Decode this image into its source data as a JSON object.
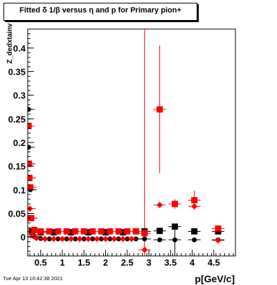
{
  "title": "Fitted δ 1/β versus η and p for Primary pion+",
  "footer": "Tue Apr 13 10:42:38 2021",
  "chart_data": {
    "type": "scatter",
    "title": "Fitted δ 1/β versus η and p for Primary pion+",
    "xlabel": "p[GeV/c]",
    "ylabel": "Z_dedxtainv",
    "xlim": [
      0.2,
      5.0
    ],
    "ylim": [
      -0.04,
      0.44
    ],
    "x_ticks": [
      0.5,
      1,
      1.5,
      2,
      2.5,
      3,
      3.5,
      4,
      4.5
    ],
    "x_tick_labels": [
      "0.5",
      "1",
      "1.5",
      "2",
      "2.5",
      "3",
      "3.5",
      "4",
      "4.5"
    ],
    "y_ticks": [
      0,
      0.05,
      0.1,
      0.15,
      0.2,
      0.25,
      0.3,
      0.35,
      0.4
    ],
    "y_tick_labels": [
      "0",
      "0.05",
      "0.1",
      "0.15",
      "0.2",
      "0.25",
      "0.3",
      "0.35",
      "0.4"
    ],
    "grid": false,
    "colors": {
      "black": "#000000",
      "red": "#ff0000"
    },
    "series": [
      {
        "color": "black",
        "marker": "circle",
        "points": [
          {
            "x": 0.22,
            "y": 0.27
          },
          {
            "x": 0.22,
            "y": 0.19
          },
          {
            "x": 0.23,
            "y": 0.155
          },
          {
            "x": 0.24,
            "y": 0.125
          },
          {
            "x": 0.26,
            "y": 0.1
          },
          {
            "x": 0.28,
            "y": 0.04
          },
          {
            "x": 0.3,
            "y": 0.01
          },
          {
            "x": 0.35,
            "y": 0.001
          },
          {
            "x": 0.4,
            "y": -0.002
          },
          {
            "x": 0.5,
            "y": -0.003
          },
          {
            "x": 0.7,
            "y": -0.004
          },
          {
            "x": 0.9,
            "y": -0.004
          },
          {
            "x": 1.1,
            "y": -0.004
          },
          {
            "x": 1.3,
            "y": -0.004
          },
          {
            "x": 1.5,
            "y": -0.004
          },
          {
            "x": 1.7,
            "y": -0.004
          },
          {
            "x": 1.9,
            "y": -0.004
          },
          {
            "x": 2.1,
            "y": -0.004
          },
          {
            "x": 2.3,
            "y": -0.004
          },
          {
            "x": 2.5,
            "y": -0.004
          },
          {
            "x": 2.7,
            "y": -0.004
          },
          {
            "x": 2.9,
            "y": -0.004
          },
          {
            "x": 3.25,
            "y": -0.006
          },
          {
            "x": 3.6,
            "y": -0.006
          },
          {
            "x": 4.05,
            "y": -0.006
          },
          {
            "x": 4.6,
            "y": -0.006
          }
        ]
      },
      {
        "color": "black",
        "marker": "square",
        "points": [
          {
            "x": 0.3,
            "y": 0.012
          },
          {
            "x": 0.5,
            "y": 0.01
          },
          {
            "x": 0.8,
            "y": 0.01
          },
          {
            "x": 1.2,
            "y": 0.01
          },
          {
            "x": 1.6,
            "y": 0.01
          },
          {
            "x": 2.0,
            "y": 0.01
          },
          {
            "x": 2.4,
            "y": 0.01
          },
          {
            "x": 2.7,
            "y": 0.012
          },
          {
            "x": 2.9,
            "y": 0.012
          },
          {
            "x": 3.25,
            "y": 0.013
          },
          {
            "x": 3.6,
            "y": 0.022
          },
          {
            "x": 4.05,
            "y": 0.012
          },
          {
            "x": 4.6,
            "y": 0.012
          }
        ]
      },
      {
        "color": "red",
        "marker": "square",
        "points": [
          {
            "x": 0.22,
            "y": 0.235
          },
          {
            "x": 0.23,
            "y": 0.155
          },
          {
            "x": 0.24,
            "y": 0.125
          },
          {
            "x": 0.26,
            "y": 0.105
          },
          {
            "x": 0.28,
            "y": 0.04
          },
          {
            "x": 0.35,
            "y": 0.015
          },
          {
            "x": 0.5,
            "y": 0.012
          },
          {
            "x": 0.7,
            "y": 0.012
          },
          {
            "x": 0.9,
            "y": 0.012
          },
          {
            "x": 1.1,
            "y": 0.012
          },
          {
            "x": 1.3,
            "y": 0.012
          },
          {
            "x": 1.5,
            "y": 0.012
          },
          {
            "x": 1.7,
            "y": 0.012
          },
          {
            "x": 1.9,
            "y": 0.012
          },
          {
            "x": 2.1,
            "y": 0.012
          },
          {
            "x": 2.3,
            "y": 0.012
          },
          {
            "x": 2.5,
            "y": 0.012
          },
          {
            "x": 2.7,
            "y": 0.012
          },
          {
            "x": 2.9,
            "y": 0.008
          },
          {
            "x": 3.25,
            "y": 0.27,
            "yerr": 0.135
          },
          {
            "x": 3.6,
            "y": 0.07,
            "yerr": 0.01
          },
          {
            "x": 4.05,
            "y": 0.078,
            "yerr": 0.02
          },
          {
            "x": 4.6,
            "y": 0.018,
            "yerr": 0.004
          }
        ]
      },
      {
        "color": "red",
        "marker": "diamond",
        "points": [
          {
            "x": 0.25,
            "y": 0.06
          },
          {
            "x": 0.3,
            "y": 0.005
          },
          {
            "x": 0.4,
            "y": -0.002
          },
          {
            "x": 0.6,
            "y": -0.004
          },
          {
            "x": 0.8,
            "y": -0.004
          },
          {
            "x": 1.0,
            "y": -0.004
          },
          {
            "x": 1.2,
            "y": -0.004
          },
          {
            "x": 1.4,
            "y": -0.004
          },
          {
            "x": 1.6,
            "y": -0.004
          },
          {
            "x": 1.8,
            "y": -0.004
          },
          {
            "x": 2.0,
            "y": -0.004
          },
          {
            "x": 2.2,
            "y": -0.004
          },
          {
            "x": 2.4,
            "y": -0.004
          },
          {
            "x": 2.6,
            "y": -0.004
          },
          {
            "x": 2.9,
            "y": -0.027
          },
          {
            "x": 3.25,
            "y": 0.068
          },
          {
            "x": 4.05,
            "y": 0.065
          },
          {
            "x": 4.6,
            "y": -0.007
          }
        ]
      }
    ],
    "vertical_lines": [
      {
        "x": 2.9,
        "y_from": -0.04,
        "y_to": 0.44,
        "color": "red"
      },
      {
        "x": 3.6,
        "y_from": -0.04,
        "y_to": 0.015,
        "color": "black"
      }
    ]
  }
}
